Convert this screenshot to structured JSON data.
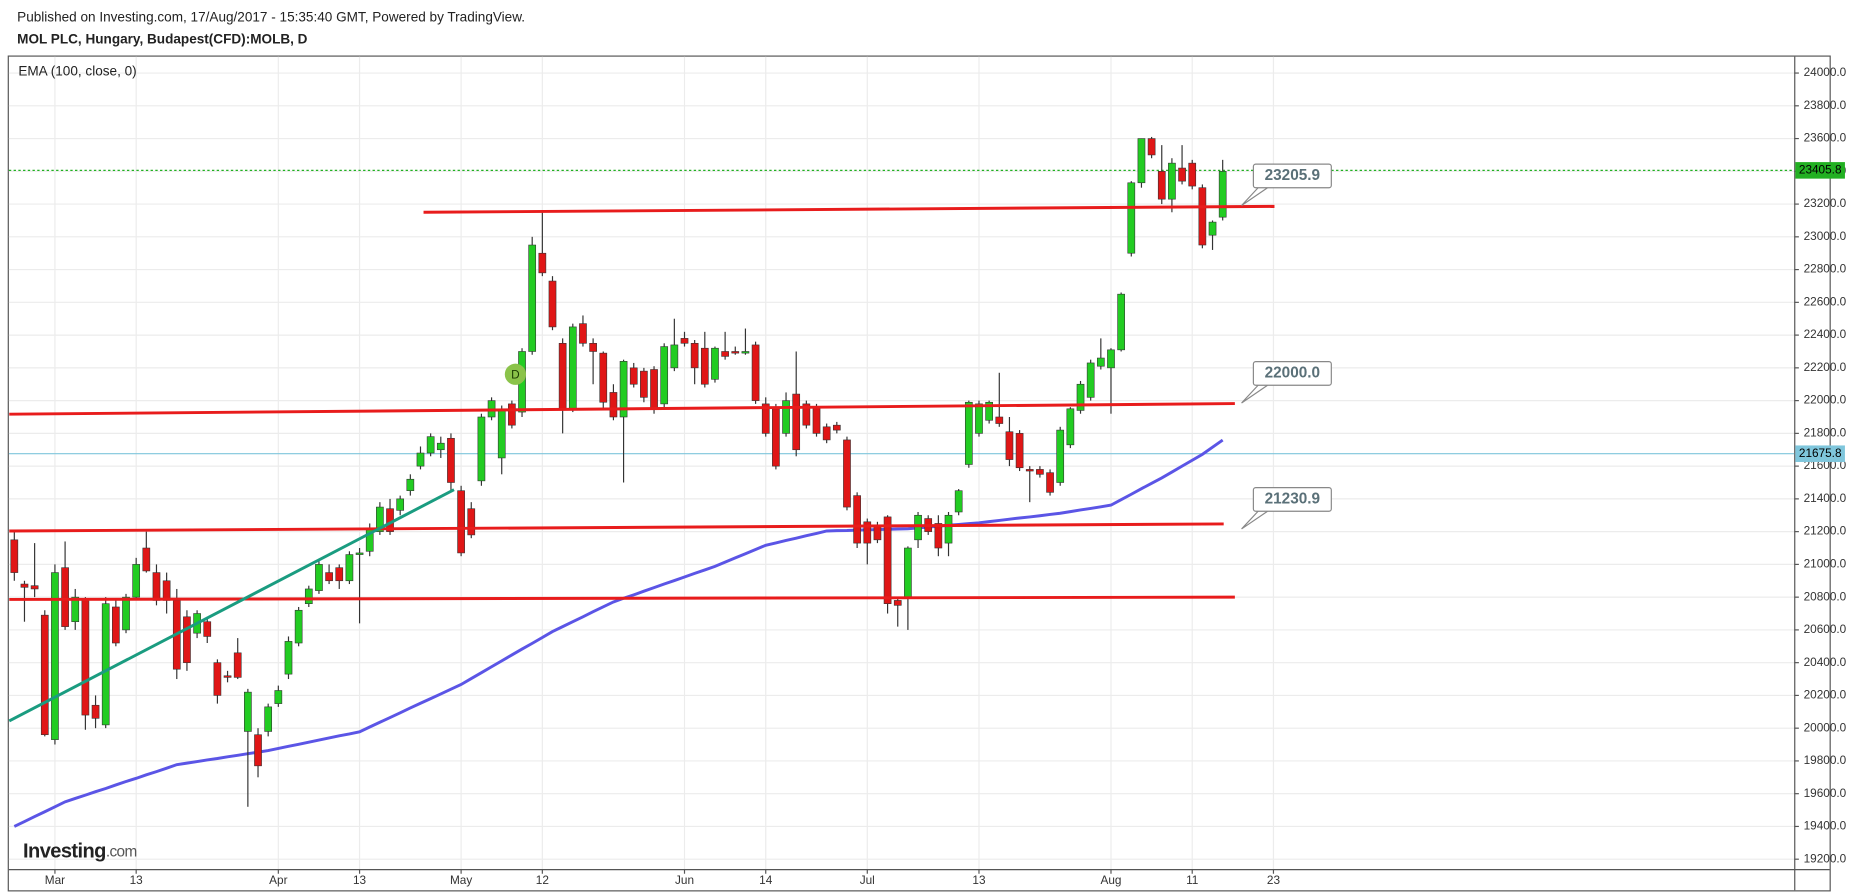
{
  "chart_data": {
    "type": "candlestick",
    "title": "MOL PLC, Hungary, Budapest(CFD):MOLB, D",
    "subtitle": "Published on Investing.com, 17/Aug/2017 - 15:35:40 GMT, Powered by TradingView.",
    "logo": {
      "name": "Investing",
      "suffix": ".com"
    },
    "marker": "D",
    "up_color": "#22cc22",
    "down_color": "#e01616",
    "grid": true,
    "categories": [
      null,
      null,
      null,
      null,
      "Mar",
      null,
      null,
      null,
      null,
      null,
      null,
      null,
      "13",
      null,
      null,
      null,
      null,
      null,
      null,
      null,
      null,
      null,
      null,
      null,
      null,
      null,
      "Apr",
      null,
      null,
      null,
      null,
      null,
      null,
      null,
      "13",
      null,
      null,
      null,
      null,
      null,
      null,
      null,
      null,
      null,
      "May",
      null,
      null,
      null,
      null,
      null,
      null,
      null,
      "12",
      null,
      null,
      null,
      null,
      null,
      null,
      null,
      null,
      null,
      null,
      null,
      null,
      null,
      "Jun",
      null,
      null,
      null,
      null,
      null,
      null,
      null,
      "14",
      null,
      null,
      null,
      null,
      null,
      null,
      null,
      null,
      null,
      "Jul",
      null,
      null,
      null,
      null,
      null,
      null,
      null,
      null,
      null,
      null,
      "13",
      null,
      null,
      null,
      null,
      null,
      null,
      null,
      null,
      null,
      null,
      null,
      null,
      "Aug",
      null,
      null,
      null,
      null,
      null,
      null,
      null,
      "11",
      null,
      null,
      null,
      null,
      null,
      null,
      null,
      "23"
    ],
    "open": [
      21150,
      20880,
      20870,
      20690,
      19930,
      20980,
      20650,
      20790,
      20140,
      20020,
      20740,
      20600,
      20800,
      21100,
      20950,
      20900,
      20780,
      20680,
      20580,
      20650,
      20400,
      20320,
      20460,
      19980,
      19960,
      19980,
      20150,
      20330,
      20520,
      20760,
      20840,
      20950,
      20980,
      20900,
      21060,
      21080,
      21200,
      21340,
      21330,
      21450,
      21600,
      21680,
      21700,
      21770,
      21450,
      21340,
      21510,
      21900,
      21650,
      21980,
      21930,
      22300,
      22900,
      22730,
      22350,
      21950,
      22470,
      22350,
      22290,
      22050,
      21900,
      22200,
      22180,
      22190,
      21980,
      22200,
      22380,
      22350,
      22320,
      22130,
      22300,
      22300,
      22290,
      22340,
      21980,
      21950,
      21800,
      22040,
      21980,
      21960,
      21840,
      21850,
      21760,
      21420,
      21260,
      21230,
      21290,
      20780,
      20800,
      21150,
      21280,
      21250,
      21130,
      21320,
      21610,
      21800,
      21880,
      21900,
      21810,
      21800,
      21580,
      21580,
      21560,
      21500,
      21730,
      21940,
      22020,
      22210,
      22200,
      22310,
      22900,
      23330,
      23600,
      23400,
      23230,
      23420,
      23450,
      23300,
      23010,
      23120,
      null,
      null,
      null,
      null,
      null
    ],
    "high": [
      21200,
      20900,
      21130,
      20720,
      21000,
      21140,
      20850,
      20800,
      20200,
      20800,
      20780,
      20820,
      21040,
      21200,
      21000,
      20950,
      20850,
      20720,
      20720,
      20680,
      20420,
      20350,
      20550,
      20240,
      20000,
      20150,
      20260,
      20560,
      20740,
      20870,
      21020,
      21000,
      21000,
      21080,
      21100,
      21250,
      21380,
      21400,
      21420,
      21550,
      21720,
      21800,
      21780,
      21800,
      21480,
      21380,
      21920,
      22020,
      21970,
      22000,
      22320,
      23000,
      23150,
      22760,
      22380,
      22470,
      22520,
      22380,
      22300,
      22100,
      22250,
      22230,
      22200,
      22210,
      22350,
      22500,
      22420,
      22370,
      22420,
      22330,
      22420,
      22330,
      22440,
      22360,
      22020,
      21980,
      22050,
      22300,
      22000,
      21980,
      21860,
      21870,
      21780,
      21440,
      21280,
      21260,
      21300,
      20800,
      21110,
      21320,
      21300,
      21300,
      21320,
      21460,
      22000,
      22000,
      22000,
      22170,
      21900,
      21820,
      21600,
      21600,
      21580,
      21840,
      21960,
      22120,
      22250,
      22380,
      22320,
      22660,
      23340,
      23600,
      23610,
      23560,
      23480,
      23560,
      23470,
      23320,
      23100,
      23470,
      null,
      null,
      null,
      null,
      null
    ],
    "low": [
      20900,
      20650,
      20800,
      19950,
      19900,
      20600,
      20600,
      19990,
      20000,
      20000,
      20500,
      20580,
      20780,
      20950,
      20750,
      20700,
      20300,
      20350,
      20550,
      20520,
      20150,
      20280,
      20300,
      19520,
      19700,
      19950,
      20130,
      20300,
      20500,
      20740,
      20820,
      20880,
      20850,
      20880,
      20640,
      21050,
      21180,
      21180,
      21300,
      21420,
      21580,
      21660,
      21650,
      21450,
      21050,
      21160,
      21480,
      21880,
      21550,
      21830,
      21900,
      22280,
      22760,
      22430,
      21800,
      21930,
      22330,
      22100,
      21950,
      21880,
      21500,
      22080,
      21990,
      21920,
      21960,
      22180,
      22330,
      22100,
      22080,
      22110,
      22250,
      22280,
      22280,
      21980,
      21780,
      21580,
      21780,
      21660,
      21830,
      21780,
      21740,
      21800,
      21330,
      21100,
      21000,
      21130,
      20700,
      20620,
      20600,
      21100,
      21180,
      21050,
      21050,
      21300,
      21590,
      21780,
      21860,
      21840,
      21600,
      21570,
      21380,
      21530,
      21420,
      21480,
      21710,
      21920,
      22000,
      22190,
      21920,
      22300,
      22880,
      23300,
      23480,
      23200,
      23150,
      23320,
      23290,
      22930,
      22920,
      23100,
      null,
      null,
      null,
      null,
      null
    ],
    "close": [
      20950,
      20860,
      20850,
      19960,
      20950,
      20620,
      20800,
      20080,
      20060,
      20760,
      20520,
      20800,
      21000,
      20960,
      20780,
      20780,
      20360,
      20400,
      20700,
      20560,
      20200,
      20310,
      20310,
      20220,
      19770,
      20130,
      20230,
      20530,
      20720,
      20850,
      21000,
      20900,
      20900,
      21060,
      21070,
      21220,
      21350,
      21200,
      21400,
      21520,
      21680,
      21780,
      21740,
      21500,
      21070,
      21180,
      21900,
      22000,
      21950,
      21850,
      22300,
      22950,
      22780,
      22450,
      21950,
      22450,
      22350,
      22300,
      21990,
      21900,
      22240,
      22100,
      22020,
      21950,
      22330,
      22340,
      22350,
      22200,
      22100,
      22320,
      22270,
      22290,
      22300,
      22000,
      21800,
      21600,
      22000,
      21700,
      21850,
      21800,
      21760,
      21820,
      21350,
      21130,
      21130,
      21150,
      20760,
      20750,
      21100,
      21300,
      21200,
      21100,
      21300,
      21450,
      21990,
      21980,
      21990,
      21860,
      21640,
      21590,
      21570,
      21550,
      21440,
      21820,
      21950,
      22100,
      22230,
      22260,
      22310,
      22650,
      23330,
      23600,
      23500,
      23230,
      23450,
      23340,
      23310,
      22950,
      23090,
      23400,
      null,
      null,
      null,
      null,
      null
    ],
    "series": [
      {
        "name": "EMA (100, close, 0)",
        "color": "#5b55e6",
        "values": [
          19400,
          19430,
          19460,
          19490,
          19520,
          19550,
          19571,
          19591,
          19612,
          19632,
          19653,
          19674,
          19694,
          19715,
          19735,
          19756,
          19777,
          19787,
          19796,
          19806,
          19815,
          19825,
          19834,
          19844,
          19854,
          19863,
          19876,
          19889,
          19901,
          19914,
          19927,
          19940,
          19953,
          19965,
          19978,
          20007,
          20036,
          20065,
          20094,
          20123,
          20152,
          20180,
          20209,
          20238,
          20267,
          20303,
          20339,
          20375,
          20411,
          20447,
          20483,
          20518,
          20554,
          20590,
          20620,
          20650,
          20680,
          20711,
          20741,
          20771,
          20793,
          20814,
          20836,
          20858,
          20880,
          20901,
          20923,
          20945,
          20966,
          20988,
          21014,
          21040,
          21065,
          21091,
          21117,
          21131,
          21146,
          21160,
          21175,
          21189,
          21204,
          21206,
          21207,
          21209,
          21211,
          21213,
          21214,
          21216,
          21218,
          21223,
          21228,
          21233,
          21239,
          21244,
          21249,
          21254,
          21261,
          21268,
          21276,
          21283,
          21290,
          21297,
          21305,
          21312,
          21322,
          21332,
          21342,
          21352,
          21362,
          21395,
          21428,
          21462,
          21495,
          21528,
          21564,
          21600,
          21636,
          21672,
          21716,
          21759,
          null,
          null,
          null,
          null,
          null
        ]
      }
    ],
    "lines": [
      {
        "color": "#e81c1c",
        "start": [
          40.3,
          23150
        ],
        "end": [
          124.1,
          23186
        ]
      },
      {
        "color": "#e81c1c",
        "start": [
          -0.5,
          21917
        ],
        "end": [
          120.2,
          21982
        ]
      },
      {
        "color": "#e81c1c",
        "start": [
          -0.5,
          21204
        ],
        "end": [
          119.1,
          21247
        ]
      },
      {
        "color": "#e81c1c",
        "start": [
          -0.5,
          20786
        ],
        "end": [
          120.2,
          20800
        ]
      },
      {
        "color": "#1a9c80",
        "start": [
          -0.5,
          20044
        ],
        "end": [
          43.3,
          21456
        ]
      }
    ],
    "annotations": [
      {
        "value": 23205.9
      },
      {
        "value": 22000,
        "label": "22000.0"
      },
      {
        "value": 21230.9
      }
    ],
    "price_lines": [
      {
        "value": 23405.8,
        "color": "#22b022"
      },
      {
        "value": 21675.8,
        "color": "#7fc6dc"
      }
    ],
    "ylim": [
      19140,
      24100
    ],
    "yticks": [
      {
        "value": 19200,
        "label": "19200.0"
      },
      {
        "value": 19400,
        "label": "19400.0"
      },
      {
        "value": 19600,
        "label": "19600.0"
      },
      {
        "value": 19800,
        "label": "19800.0"
      },
      {
        "value": 20000,
        "label": "20000.0"
      },
      {
        "value": 20200,
        "label": "20200.0"
      },
      {
        "value": 20400,
        "label": "20400.0"
      },
      {
        "value": 20600,
        "label": "20600.0"
      },
      {
        "value": 20800,
        "label": "20800.0"
      },
      {
        "value": 21000,
        "label": "21000.0"
      },
      {
        "value": 21200,
        "label": "21200.0"
      },
      {
        "value": 21400,
        "label": "21400.0"
      },
      {
        "value": 21600,
        "label": "21600.0"
      },
      {
        "value": 21800,
        "label": "21800.0"
      },
      {
        "value": 22000,
        "label": "22000.0"
      },
      {
        "value": 22200,
        "label": "22200.0"
      },
      {
        "value": 22400,
        "label": "22400.0"
      },
      {
        "value": 22600,
        "label": "22600.0"
      },
      {
        "value": 22800,
        "label": "22800.0"
      },
      {
        "value": 23000,
        "label": "23000.0"
      },
      {
        "value": 23200,
        "label": "23200.0"
      },
      {
        "value": 23400,
        "label": "23400.0"
      },
      {
        "value": 23600,
        "label": "23600.0"
      },
      {
        "value": 23800,
        "label": "23800.0"
      },
      {
        "value": 24000,
        "label": "24000.0"
      }
    ]
  }
}
